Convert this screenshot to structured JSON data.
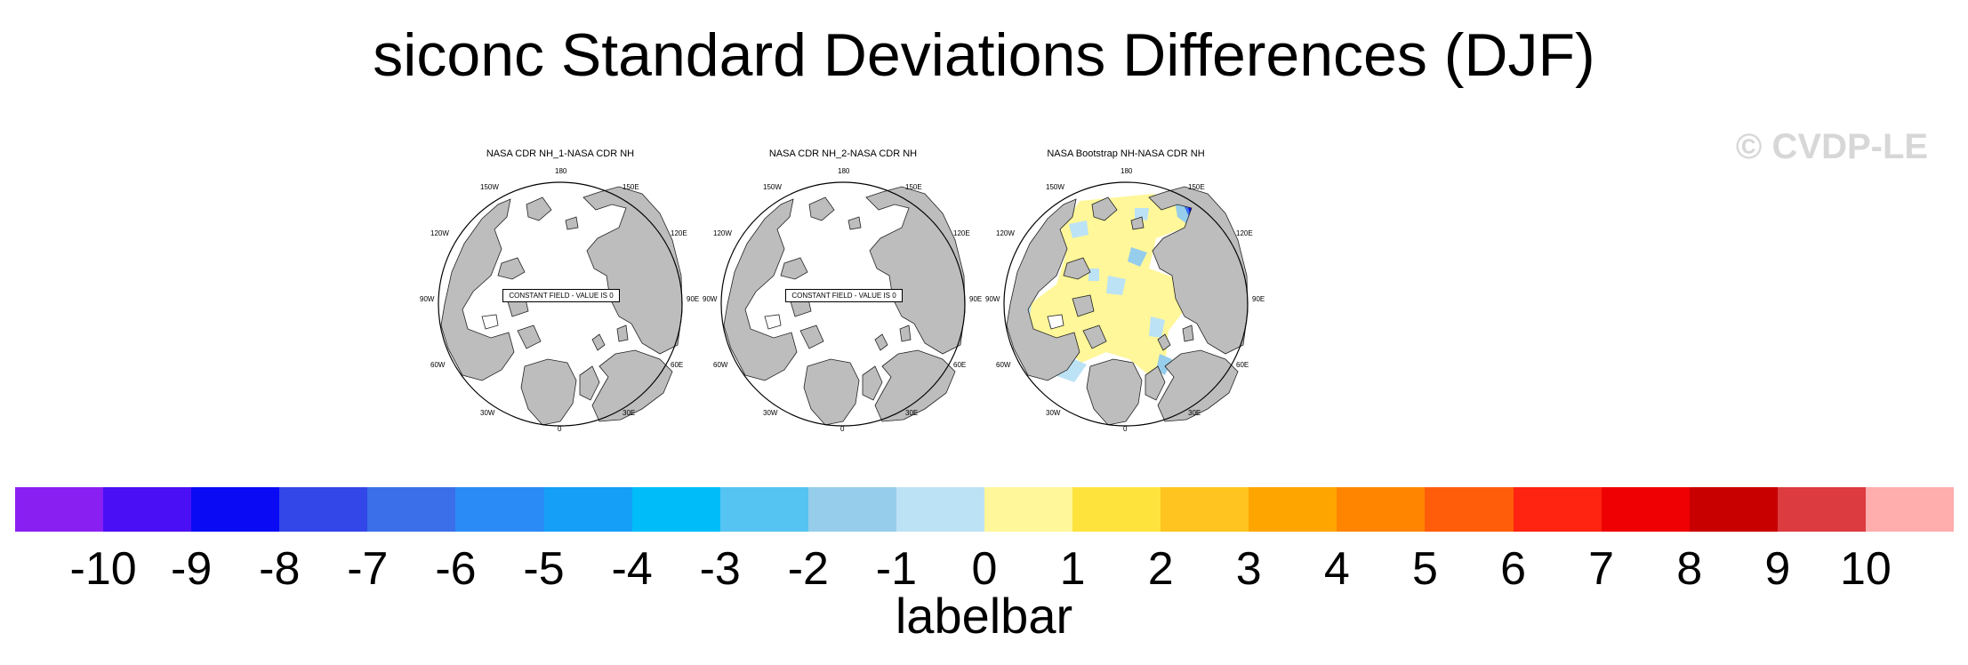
{
  "title": "siconc Standard Deviations Differences (DJF)",
  "watermark": "© CVDP-LE",
  "panels": [
    {
      "title": "NASA CDR NH_1-NASA CDR NH",
      "annotation": "CONSTANT FIELD - VALUE IS 0",
      "field": "constant"
    },
    {
      "title": "NASA CDR NH_2-NASA CDR NH",
      "annotation": "CONSTANT FIELD - VALUE IS 0",
      "field": "constant"
    },
    {
      "title": "NASA Bootstrap NH-NASA CDR NH",
      "annotation": "",
      "field": "varying"
    }
  ],
  "longitude_labels": [
    "180",
    "150E",
    "120E",
    "90E",
    "60E",
    "30E",
    "0",
    "30W",
    "60W",
    "90W",
    "120W",
    "150W"
  ],
  "colorbar": {
    "title": "labelbar",
    "ticks": [
      "-10",
      "-9",
      "-8",
      "-7",
      "-6",
      "-5",
      "-4",
      "-3",
      "-2",
      "-1",
      "0",
      "1",
      "2",
      "3",
      "4",
      "5",
      "6",
      "7",
      "8",
      "9",
      "10"
    ],
    "colors": [
      "#8a1ff2",
      "#4a0ff5",
      "#0a0af5",
      "#3346e8",
      "#3b6fea",
      "#2a8bf6",
      "#159ff6",
      "#00bdf9",
      "#55c4f2",
      "#96cdeb",
      "#bce2f5",
      "#fff799",
      "#ffe33d",
      "#ffc41f",
      "#ffa500",
      "#ff8500",
      "#ff5d0a",
      "#ff2311",
      "#ee0003",
      "#c80000",
      "#dc3b3f",
      "#ffadad"
    ]
  },
  "land_color": "#bdbdbd",
  "ocean_color": "#ffffff"
}
